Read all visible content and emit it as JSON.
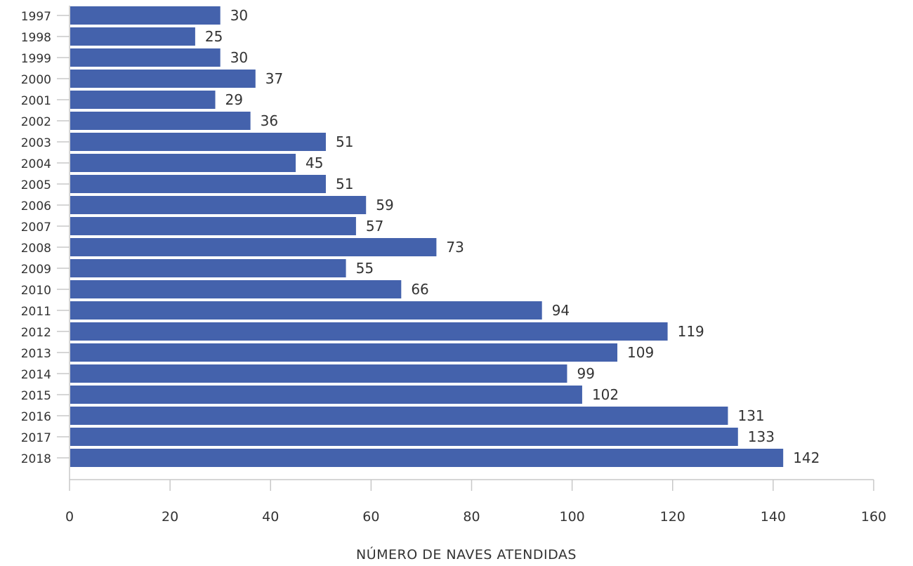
{
  "chart_data": {
    "type": "bar",
    "orientation": "horizontal",
    "categories": [
      "1997",
      "1998",
      "1999",
      "2000",
      "2001",
      "2002",
      "2003",
      "2004",
      "2005",
      "2006",
      "2007",
      "2008",
      "2009",
      "2010",
      "2011",
      "2012",
      "2013",
      "2014",
      "2015",
      "2016",
      "2017",
      "2018"
    ],
    "values": [
      30,
      25,
      30,
      37,
      29,
      36,
      51,
      45,
      51,
      59,
      57,
      73,
      55,
      66,
      94,
      119,
      109,
      99,
      102,
      131,
      133,
      142
    ],
    "data_labels": [
      "30",
      "25",
      "30",
      "37",
      "29",
      "36",
      "51",
      "45",
      "51",
      "59",
      "57",
      "73",
      "55",
      "66",
      "94",
      "119",
      "109",
      "99",
      "102",
      "131",
      "133",
      "142"
    ],
    "xlabel": "NÚMERO DE NAVES ATENDIDAS",
    "ylabel": "",
    "xlim": [
      0,
      160
    ],
    "x_ticks": [
      "0",
      "20",
      "40",
      "60",
      "80",
      "100",
      "120",
      "140",
      "160"
    ],
    "grid": false,
    "bar_color": "#4462ac"
  }
}
